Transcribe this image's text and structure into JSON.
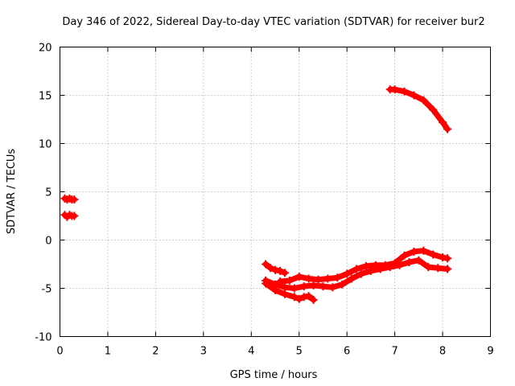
{
  "chart_data": {
    "type": "line",
    "title": "Day 346 of 2022, Sidereal Day-to-day VTEC variation (SDTVAR) for receiver bur2",
    "xlabel": "GPS time / hours",
    "ylabel": "SDTVAR / TECUs",
    "xlim": [
      0,
      9
    ],
    "ylim": [
      -10,
      20
    ],
    "xticks": [
      0,
      1,
      2,
      3,
      4,
      5,
      6,
      7,
      8,
      9
    ],
    "yticks": [
      -10,
      -5,
      0,
      5,
      10,
      15,
      20
    ],
    "xtick_labels": [
      "0",
      "1",
      "2",
      "3",
      "4",
      "5",
      "6",
      "7",
      "8",
      "9"
    ],
    "ytick_labels": [
      "-10",
      "-5",
      "0",
      "5",
      "10",
      "15",
      "20"
    ],
    "grid": true,
    "legend": "none",
    "color": "#ff0000",
    "series": [
      {
        "name": "arc-1",
        "x": [
          0.1,
          0.15,
          0.2,
          0.25,
          0.3
        ],
        "y": [
          4.3,
          4.2,
          4.3,
          4.2,
          4.2
        ]
      },
      {
        "name": "arc-2",
        "x": [
          0.1,
          0.15,
          0.2,
          0.25,
          0.3
        ],
        "y": [
          2.6,
          2.4,
          2.6,
          2.5,
          2.5
        ]
      },
      {
        "name": "arc-3",
        "x": [
          6.9,
          7.0,
          7.2,
          7.4,
          7.6,
          7.8,
          8.0,
          8.1
        ],
        "y": [
          15.6,
          15.6,
          15.4,
          15.0,
          14.5,
          13.5,
          12.2,
          11.5
        ]
      },
      {
        "name": "arc-4",
        "x": [
          4.3,
          4.4,
          4.5,
          4.6,
          4.7
        ],
        "y": [
          -2.5,
          -2.9,
          -3.1,
          -3.2,
          -3.4
        ]
      },
      {
        "name": "arc-5",
        "x": [
          4.3,
          4.5,
          4.7,
          4.9,
          5.0,
          5.1,
          5.2,
          5.3
        ],
        "y": [
          -4.5,
          -5.2,
          -5.6,
          -5.9,
          -6.1,
          -5.9,
          -5.8,
          -6.2
        ]
      },
      {
        "name": "arc-6",
        "x": [
          4.3,
          4.5,
          4.7,
          4.9,
          5.1,
          5.3,
          5.5,
          5.7,
          5.9,
          6.1,
          6.3,
          6.5,
          6.7,
          6.9,
          7.1,
          7.3,
          7.5,
          7.7,
          7.9,
          8.1
        ],
        "y": [
          -4.2,
          -4.6,
          -4.9,
          -5.0,
          -4.8,
          -4.7,
          -4.8,
          -4.9,
          -4.6,
          -4.0,
          -3.5,
          -3.2,
          -3.0,
          -2.8,
          -2.6,
          -2.3,
          -2.1,
          -2.8,
          -2.9,
          -3.0
        ]
      },
      {
        "name": "arc-7",
        "x": [
          4.6,
          4.8,
          5.0,
          5.2,
          5.4,
          5.6,
          5.8,
          6.0,
          6.2,
          6.4,
          6.6,
          6.8,
          7.0,
          7.2,
          7.4,
          7.6,
          7.8,
          8.0,
          8.1
        ],
        "y": [
          -4.3,
          -4.2,
          -3.8,
          -4.0,
          -4.1,
          -4.0,
          -3.9,
          -3.5,
          -3.0,
          -2.7,
          -2.6,
          -2.6,
          -2.4,
          -1.6,
          -1.2,
          -1.1,
          -1.5,
          -1.8,
          -1.9
        ]
      }
    ]
  }
}
